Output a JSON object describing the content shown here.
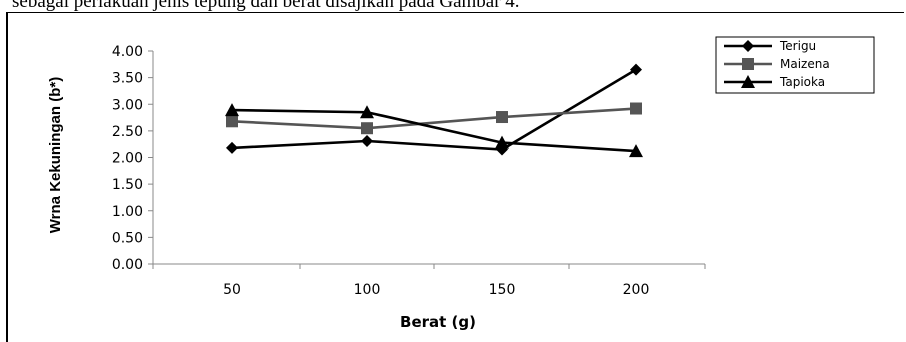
{
  "caption": "sebagai perlakuan jenis tepung dan berat disajikan pada Gambar 4.",
  "chart_data": {
    "type": "line",
    "title": "",
    "xlabel": "Berat (g)",
    "ylabel": "Wrna Kekuningan (b*)",
    "categories": [
      "50",
      "100",
      "150",
      "200"
    ],
    "ylim": [
      0,
      4
    ],
    "yticks": [
      "0.00",
      "0.50",
      "1.00",
      "1.50",
      "2.00",
      "2.50",
      "3.00",
      "3.50",
      "4.00"
    ],
    "grid": false,
    "legend_position": "top-right",
    "series": [
      {
        "name": "Terigu",
        "values": [
          2.18,
          2.31,
          2.15,
          3.65
        ],
        "color": "#000000",
        "marker": "diamond"
      },
      {
        "name": "Maizena",
        "values": [
          2.68,
          2.55,
          2.76,
          2.92
        ],
        "color": "#555555",
        "marker": "square"
      },
      {
        "name": "Tapioka",
        "values": [
          2.89,
          2.85,
          2.28,
          2.12
        ],
        "color": "#000000",
        "marker": "triangle"
      }
    ]
  }
}
